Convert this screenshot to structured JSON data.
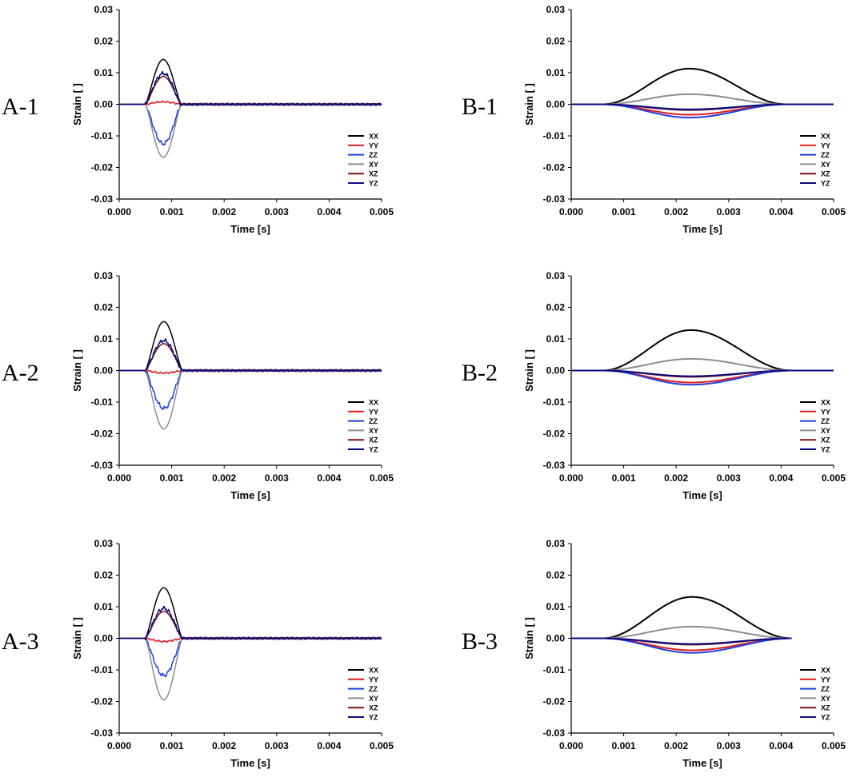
{
  "chart_data": [
    {
      "id": "A-1",
      "type": "line",
      "panel_label": "A-1",
      "xlabel": "Time [s]",
      "ylabel": "Strain [ ]",
      "xlim": [
        0,
        0.005
      ],
      "ylim": [
        -0.03,
        0.03
      ],
      "x_ticks": [
        "0.000",
        "0.001",
        "0.002",
        "0.003",
        "0.004",
        "0.005"
      ],
      "y_ticks": [
        "0.03",
        "0.02",
        "0.01",
        "0.00",
        "-0.01",
        "-0.02",
        "-0.03"
      ],
      "legend_position": "bottom-right",
      "pulse": "short",
      "pulse_start": 0.0005,
      "pulse_end": 0.00118,
      "peak_time": 0.00082,
      "series": [
        {
          "name": "XX",
          "color": "#000000",
          "peak": 0.0142
        },
        {
          "name": "YY",
          "color": "#e41a1c",
          "peak": 0.0008
        },
        {
          "name": "ZZ",
          "color": "#1f3fe0",
          "peak": -0.0125
        },
        {
          "name": "XY",
          "color": "#8c8c8c",
          "peak": -0.0168
        },
        {
          "name": "XZ",
          "color": "#7a1010",
          "peak": 0.0088
        },
        {
          "name": "YZ",
          "color": "#0a0a80",
          "peak": 0.0098
        }
      ]
    },
    {
      "id": "B-1",
      "type": "line",
      "panel_label": "B-1",
      "xlabel": "Time [s]",
      "ylabel": "Strain [ ]",
      "xlim": [
        0,
        0.005
      ],
      "ylim": [
        -0.03,
        0.03
      ],
      "x_ticks": [
        "0.000",
        "0.001",
        "0.002",
        "0.003",
        "0.004",
        "0.005"
      ],
      "y_ticks": [
        "0.03",
        "0.02",
        "0.01",
        "0.00",
        "-0.01",
        "-0.02",
        "-0.03"
      ],
      "legend_position": "bottom-right",
      "pulse": "long",
      "pulse_start": 0.0006,
      "pulse_end": 0.0041,
      "peak_time": 0.00225,
      "series": [
        {
          "name": "XX",
          "color": "#000000",
          "peak": 0.0113
        },
        {
          "name": "YY",
          "color": "#e41a1c",
          "peak": -0.0033
        },
        {
          "name": "ZZ",
          "color": "#1f3fe0",
          "peak": -0.0042
        },
        {
          "name": "XY",
          "color": "#8c8c8c",
          "peak": 0.0032
        },
        {
          "name": "XZ",
          "color": "#7a1010",
          "peak": -0.0018
        },
        {
          "name": "YZ",
          "color": "#0a0a80",
          "peak": -0.0016
        }
      ]
    },
    {
      "id": "A-2",
      "type": "line",
      "panel_label": "A-2",
      "xlabel": "Time [s]",
      "ylabel": "Strain [ ]",
      "xlim": [
        0,
        0.005
      ],
      "ylim": [
        -0.03,
        0.03
      ],
      "x_ticks": [
        "0.000",
        "0.001",
        "0.002",
        "0.003",
        "0.004",
        "0.005"
      ],
      "y_ticks": [
        "0.03",
        "0.02",
        "0.01",
        "0.00",
        "-0.01",
        "-0.02",
        "-0.03"
      ],
      "legend_position": "bottom-right",
      "pulse": "short",
      "pulse_start": 0.0005,
      "pulse_end": 0.0012,
      "peak_time": 0.00084,
      "series": [
        {
          "name": "XX",
          "color": "#000000",
          "peak": 0.0155
        },
        {
          "name": "YY",
          "color": "#e41a1c",
          "peak": -0.0008
        },
        {
          "name": "ZZ",
          "color": "#1f3fe0",
          "peak": -0.012
        },
        {
          "name": "XY",
          "color": "#8c8c8c",
          "peak": -0.0185
        },
        {
          "name": "XZ",
          "color": "#7a1010",
          "peak": 0.0085
        },
        {
          "name": "YZ",
          "color": "#0a0a80",
          "peak": 0.0095
        }
      ]
    },
    {
      "id": "B-2",
      "type": "line",
      "panel_label": "B-2",
      "xlabel": "Time [s]",
      "ylabel": "Strain [ ]",
      "xlim": [
        0,
        0.005
      ],
      "ylim": [
        -0.03,
        0.03
      ],
      "x_ticks": [
        "0.000",
        "0.001",
        "0.002",
        "0.003",
        "0.004",
        "0.005"
      ],
      "y_ticks": [
        "0.03",
        "0.02",
        "0.01",
        "0.00",
        "-0.01",
        "-0.02",
        "-0.03"
      ],
      "legend_position": "bottom-right",
      "pulse": "long",
      "pulse_start": 0.0006,
      "pulse_end": 0.0042,
      "peak_time": 0.00228,
      "series": [
        {
          "name": "XX",
          "color": "#000000",
          "peak": 0.0128
        },
        {
          "name": "YY",
          "color": "#e41a1c",
          "peak": -0.0038
        },
        {
          "name": "ZZ",
          "color": "#1f3fe0",
          "peak": -0.0045
        },
        {
          "name": "XY",
          "color": "#8c8c8c",
          "peak": 0.0037
        },
        {
          "name": "XZ",
          "color": "#7a1010",
          "peak": -0.002
        },
        {
          "name": "YZ",
          "color": "#0a0a80",
          "peak": -0.0018
        }
      ]
    },
    {
      "id": "A-3",
      "type": "line",
      "panel_label": "A-3",
      "xlabel": "Time [s]",
      "ylabel": "Strain [ ]",
      "xlim": [
        0,
        0.005
      ],
      "ylim": [
        -0.03,
        0.03
      ],
      "x_ticks": [
        "0.000",
        "0.001",
        "0.002",
        "0.003",
        "0.004",
        "0.005"
      ],
      "y_ticks": [
        "0.03",
        "0.02",
        "0.01",
        "0.00",
        "-0.01",
        "-0.02",
        "-0.03"
      ],
      "legend_position": "bottom-right",
      "pulse": "short",
      "pulse_start": 0.0005,
      "pulse_end": 0.0012,
      "peak_time": 0.00085,
      "series": [
        {
          "name": "XX",
          "color": "#000000",
          "peak": 0.016
        },
        {
          "name": "YY",
          "color": "#e41a1c",
          "peak": -0.001
        },
        {
          "name": "ZZ",
          "color": "#1f3fe0",
          "peak": -0.0118
        },
        {
          "name": "XY",
          "color": "#8c8c8c",
          "peak": -0.0195
        },
        {
          "name": "XZ",
          "color": "#7a1010",
          "peak": 0.0085
        },
        {
          "name": "YZ",
          "color": "#0a0a80",
          "peak": 0.0095
        }
      ]
    },
    {
      "id": "B-3",
      "type": "line",
      "panel_label": "B-3",
      "xlabel": "Time [s]",
      "ylabel": "Strain [ ]",
      "xlim": [
        0,
        0.005
      ],
      "ylim": [
        -0.03,
        0.03
      ],
      "x_ticks": [
        "0.000",
        "0.001",
        "0.002",
        "0.003",
        "0.004",
        "0.005"
      ],
      "y_ticks": [
        "0.03",
        "0.02",
        "0.01",
        "0.00",
        "-0.01",
        "-0.02",
        "-0.03"
      ],
      "legend_position": "bottom-right",
      "pulse": "long",
      "pulse_start": 0.0006,
      "pulse_end": 0.0042,
      "peak_time": 0.0023,
      "data_end": 0.0042,
      "series": [
        {
          "name": "XX",
          "color": "#000000",
          "peak": 0.0131
        },
        {
          "name": "YY",
          "color": "#e41a1c",
          "peak": -0.0038
        },
        {
          "name": "ZZ",
          "color": "#1f3fe0",
          "peak": -0.0046
        },
        {
          "name": "XY",
          "color": "#8c8c8c",
          "peak": 0.0037
        },
        {
          "name": "XZ",
          "color": "#7a1010",
          "peak": -0.002
        },
        {
          "name": "YZ",
          "color": "#0a0a80",
          "peak": -0.0018
        }
      ]
    }
  ]
}
